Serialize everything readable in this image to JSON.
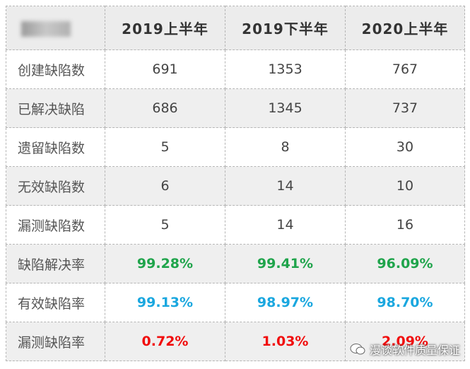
{
  "table": {
    "header": [
      "2019上半年",
      "2019下半年",
      "2020上半年"
    ],
    "rows": [
      [
        "创建缺陷数",
        "691",
        "1353",
        "767"
      ],
      [
        "已解决缺陷",
        "686",
        "1345",
        "737"
      ],
      [
        "遗留缺陷数",
        "5",
        "8",
        "30"
      ],
      [
        "无效缺陷数",
        "6",
        "14",
        "10"
      ],
      [
        "漏测缺陷数",
        "5",
        "14",
        "16"
      ],
      [
        "缺陷解决率",
        "99.28%",
        "99.41%",
        "96.09%"
      ],
      [
        "有效缺陷率",
        "99.13%",
        "98.97%",
        "98.70%"
      ],
      [
        "漏测缺陷率",
        "0.72%",
        "1.03%",
        "2.09%"
      ]
    ]
  },
  "watermark": "漫谈软件质量保证"
}
